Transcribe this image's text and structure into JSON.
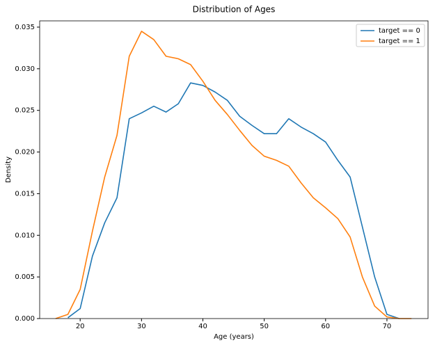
{
  "chart_data": {
    "type": "line",
    "title": "Distribution of Ages",
    "xlabel": "Age (years)",
    "ylabel": "Density",
    "x": [
      16,
      18,
      20,
      22,
      24,
      26,
      28,
      30,
      32,
      34,
      36,
      38,
      40,
      42,
      44,
      46,
      48,
      50,
      52,
      54,
      56,
      58,
      60,
      62,
      64,
      66,
      68,
      70,
      72,
      74
    ],
    "series": [
      {
        "name": "target == 0",
        "color": "#1f77b4",
        "values": [
          null,
          0.0001,
          0.0012,
          0.0075,
          0.0115,
          0.0145,
          0.024,
          0.0247,
          0.0255,
          0.0248,
          0.0258,
          0.0283,
          0.028,
          0.0272,
          0.0262,
          0.0243,
          0.0232,
          0.0222,
          0.0222,
          0.024,
          0.023,
          0.0222,
          0.0212,
          0.019,
          0.017,
          0.011,
          0.005,
          0.0005,
          0.0,
          null
        ]
      },
      {
        "name": "target == 1",
        "color": "#ff7f0e",
        "values": [
          0.0,
          0.0005,
          0.0035,
          0.0105,
          0.017,
          0.022,
          0.0315,
          0.0345,
          0.0335,
          0.0315,
          0.0312,
          0.0305,
          0.0285,
          0.0262,
          0.0245,
          0.0226,
          0.0208,
          0.0195,
          0.019,
          0.0183,
          0.0163,
          0.0145,
          0.0133,
          0.012,
          0.0098,
          0.005,
          0.0015,
          0.0002,
          0.0,
          0.0
        ]
      }
    ],
    "xlim": [
      13.4,
      76.7
    ],
    "ylim": [
      0,
      0.03575
    ],
    "xticks": [
      20,
      30,
      40,
      50,
      60,
      70
    ],
    "yticks": [
      {
        "value": 0,
        "label": "0.000"
      },
      {
        "value": 0.005,
        "label": "0.005"
      },
      {
        "value": 0.01,
        "label": "0.010"
      },
      {
        "value": 0.015,
        "label": "0.015"
      },
      {
        "value": 0.02,
        "label": "0.020"
      },
      {
        "value": 0.025,
        "label": "0.025"
      },
      {
        "value": 0.03,
        "label": "0.030"
      },
      {
        "value": 0.035,
        "label": "0.035"
      }
    ],
    "legend": "upper right"
  }
}
